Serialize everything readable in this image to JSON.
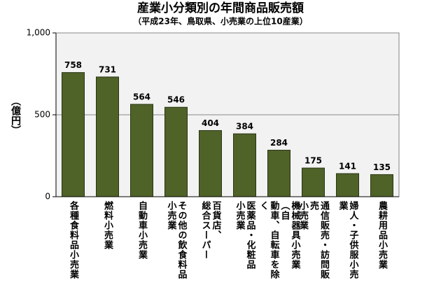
{
  "chart_data": {
    "type": "bar",
    "title": "産業小分類別の年間商品販売額",
    "subtitle": "（平成23年、鳥取県、小売業の上位10産業）",
    "y_label": "（億円）",
    "categories": [
      "各種食料品小売業",
      "燃料小売業",
      "自動車小売業",
      "その他の飲食料品\n小売業",
      "百貨店、\n総合スーパー",
      "医薬品・化粧品\n小売業",
      "機械器具小売業（自\n動車、自転車を除く",
      "通信販売・訪問販売\n小売業",
      "婦人・子供服小売業",
      "農耕用品小売業"
    ],
    "values": [
      758,
      731,
      564,
      546,
      404,
      384,
      284,
      175,
      141,
      135
    ],
    "color": "#4f6228",
    "ylim": [
      0,
      1000
    ],
    "yticks": [
      0,
      500,
      {
        "value": 1000,
        "label": "1,000"
      }
    ],
    "grid": true
  }
}
